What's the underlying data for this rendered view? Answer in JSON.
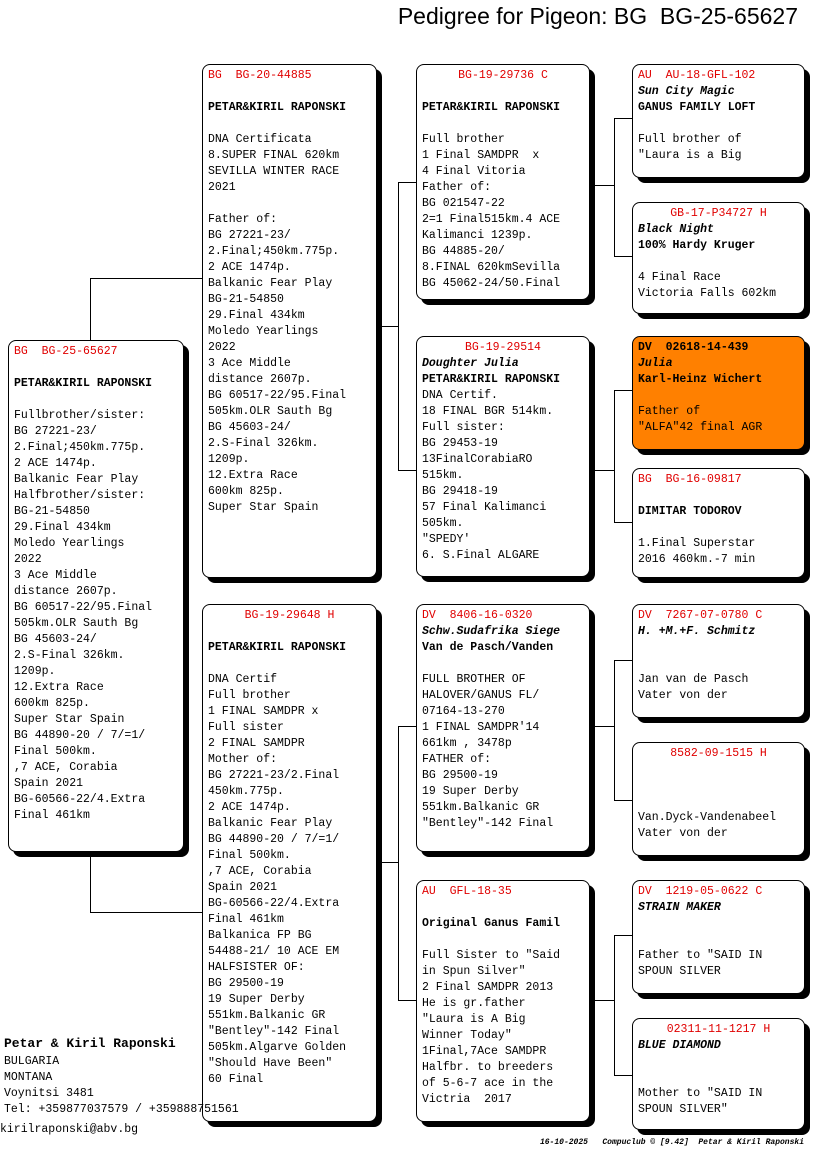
{
  "title": "Pedigree for Pigeon: BG  BG-25-65627",
  "boxes": {
    "subject": {
      "header": "BG  BG-25-65627",
      "center": false,
      "name": "",
      "owner": "PETAR&KIRIL RAPONSKI",
      "notes": [
        "",
        "Fullbrother/sister:",
        "BG 27221-23/",
        "2.Final;450km.775p.",
        "2 ACE 1474p.",
        "Balkanic Fear Play",
        "Halfbrother/sister:",
        "BG-21-54850",
        "29.Final 434km",
        "Moledo Yearlings",
        "2022",
        "3 Ace Middle",
        "distance 2607p.",
        "BG 60517-22/95.Final",
        "505km.OLR Sauth Bg",
        "BG 45603-24/",
        "2.S-Final 326km.",
        "1209p.",
        "12.Extra Race",
        "600km 825p.",
        "Super Star Spain",
        "BG 44890-20 / 7/=1/",
        "Final 500km.",
        ",7 ACE, Corabia",
        "Spain 2021",
        "BG-60566-22/4.Extra",
        "Final 461km"
      ]
    },
    "sire": {
      "header": "BG  BG-20-44885",
      "center": false,
      "name": "",
      "owner": "PETAR&KIRIL RAPONSKI",
      "notes": [
        "",
        "DNA Certificata",
        "8.SUPER FINAL 620km",
        "SEVILLA WINTER RACE",
        "2021",
        "",
        "Father of:",
        "BG 27221-23/",
        "2.Final;450km.775p.",
        "2 ACE 1474p.",
        "Balkanic Fear Play",
        "BG-21-54850",
        "29.Final 434km",
        "Moledo Yearlings",
        "2022",
        "3 Ace Middle",
        "distance 2607p.",
        "BG 60517-22/95.Final",
        "505km.OLR Sauth Bg",
        "BG 45603-24/",
        "2.S-Final 326km.",
        "1209p.",
        "12.Extra Race",
        "600km 825p.",
        "Super Star Spain"
      ]
    },
    "dam": {
      "header": "BG-19-29648 H",
      "center": true,
      "name": "",
      "owner": "PETAR&KIRIL RAPONSKI",
      "notes": [
        "",
        "DNA Certif",
        "Full brother",
        "1 FINAL SAMDPR x",
        "Full sister",
        "2 FINAL SAMDPR",
        "Mother of:",
        "BG 27221-23/2.Final",
        "450km.775p.",
        "2 ACE 1474p.",
        "Balkanic Fear Play",
        "BG 44890-20 / 7/=1/",
        "Final 500km.",
        ",7 ACE, Corabia",
        "Spain 2021",
        "BG-60566-22/4.Extra",
        "Final 461km",
        "Balkanica FP BG",
        "54488-21/ 10 ACE EM",
        "HALFSISTER OF:",
        "BG 29500-19",
        "19 Super Derby",
        "551km.Balkanic GR",
        "\"Bentley\"-142 Final",
        "505km.Algarve Golden",
        "\"Should Have Been\"",
        "60 Final"
      ]
    },
    "ss": {
      "header": "BG-19-29736 C",
      "center": true,
      "name": "",
      "owner": "PETAR&KIRIL RAPONSKI",
      "notes": [
        "",
        "Full brother",
        "1 Final SAMDPR  x",
        "4 Final Vitoria",
        "Father of:",
        "BG 021547-22",
        "2=1 Final515km.4 ACE",
        "Kalimanci 1239p.",
        "BG 44885-20/",
        "8.FINAL 620kmSevilla",
        "BG 45062-24/50.Final"
      ]
    },
    "sd": {
      "header": "BG-19-29514",
      "center": true,
      "name": "Doughter Julia",
      "owner": "PETAR&KIRIL RAPONSKI",
      "notes": [
        "DNA Certif.",
        "18 FINAL BGR 514km.",
        "Full sister:",
        "BG 29453-19",
        "13FinalCorabiaRO",
        "515km.",
        "BG 29418-19",
        "57 Final Kalimanci",
        "505km.",
        "\"SPEDY'",
        "6. S.Final ALGARE"
      ]
    },
    "ds": {
      "header": "DV  8406-16-0320",
      "center": false,
      "name": "Schw.Sudafrika Siege",
      "owner": "Van de Pasch/Vanden",
      "notes": [
        "",
        "FULL BROTHER OF",
        "HALOVER/GANUS FL/",
        "07164-13-270",
        "1 FINAL SAMDPR'14",
        "661km , 3478p",
        "FATHER of:",
        "BG 29500-19",
        "19 Super Derby",
        "551km.Balkanic GR",
        "\"Bentley\"-142 Final"
      ]
    },
    "dd": {
      "header": "AU  GFL-18-35",
      "center": false,
      "name": "",
      "owner": "Original Ganus Famil",
      "notes": [
        "",
        "Full Sister to \"Said",
        "in Spun Silver\"",
        "2 Final SAMDPR 2013",
        "He is gr.father",
        "\"Laura is A Big",
        "Winner Today\"",
        "1Final,7Ace SAMDPR",
        "Halfbr. to breeders",
        "of 5-6-7 ace in the",
        "Victria  2017"
      ]
    },
    "sss": {
      "header": "AU  AU-18-GFL-102",
      "center": false,
      "name": "Sun City Magic",
      "owner": "GANUS FAMILY LOFT",
      "notes": [
        "",
        "Full brother of",
        "\"Laura is a Big"
      ]
    },
    "ssd": {
      "header": "GB-17-P34727 H",
      "center": true,
      "name": "Black Night",
      "owner": "100% Hardy Kruger",
      "notes": [
        "",
        "4 Final Race",
        "Victoria Falls 602km"
      ]
    },
    "sds": {
      "header": "DV  02618-14-439",
      "center": false,
      "name": "Julia",
      "owner": "Karl-Heinz Wichert",
      "notes": [
        "",
        "Father of",
        "\"ALFA\"42 final AGR"
      ],
      "highlight": "#ff8000"
    },
    "sdd": {
      "header": "BG  BG-16-09817",
      "center": false,
      "name": "",
      "owner": "DIMITAR TODOROV",
      "notes": [
        "",
        "1.Final Superstar",
        "2016 460km.-7 min"
      ]
    },
    "dss": {
      "header": "DV  7267-07-0780 C",
      "center": false,
      "name": "H. +M.+F. Schmitz",
      "owner": "",
      "notes": [
        "",
        "Jan van de Pasch",
        "Vater von der"
      ]
    },
    "dsd": {
      "header": "8582-09-1515 H",
      "center": true,
      "name": "",
      "owner": "",
      "notes": [
        "",
        "Van.Dyck-Vandenabeel",
        "Vater von der"
      ]
    },
    "dds": {
      "header": "DV  1219-05-0622 C",
      "center": false,
      "name": "STRAIN MAKER",
      "owner": "",
      "notes": [
        "",
        "Father to \"SAID IN",
        "SPOUN SILVER"
      ]
    },
    "ddd": {
      "header": "02311-11-1217 H",
      "center": true,
      "name": "BLUE DIAMOND",
      "owner": "",
      "notes": [
        "",
        "Mother to \"SAID IN",
        "SPOUN SILVER\""
      ]
    }
  },
  "breeder": {
    "name": "Petar & Kiril Raponski",
    "country": "BULGARIA",
    "region": "MONTANA",
    "city": "Voynitsi 3481",
    "phone": "Tel: +359877037579 / +359888751561",
    "email": "kirilraponski@abv.bg"
  },
  "footer": "16-10-2025   Compuclub © [9.42]  Petar & Kiril Raponski",
  "colors": {
    "header": "#e00000",
    "highlight": "#ff8000"
  }
}
